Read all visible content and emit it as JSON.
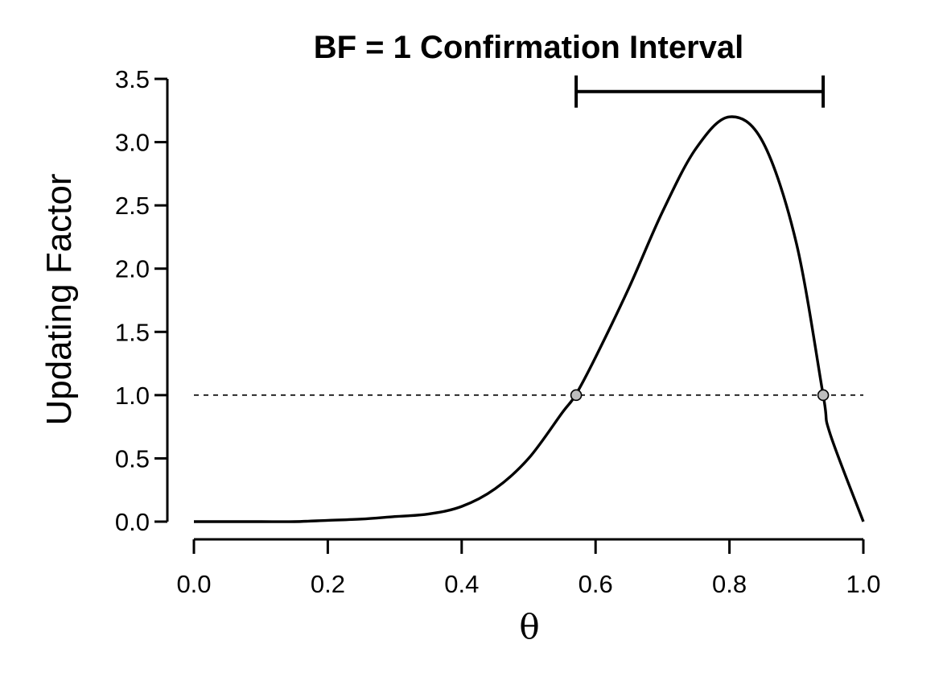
{
  "chart_data": {
    "type": "line",
    "title": "BF = 1 Confirmation Interval",
    "xlabel": "θ",
    "ylabel": "Updating Factor",
    "xlim": [
      0,
      1
    ],
    "ylim": [
      0,
      3.5
    ],
    "x_ticks": [
      "0.0",
      "0.2",
      "0.4",
      "0.6",
      "0.8",
      "1.0"
    ],
    "y_ticks": [
      "0.0",
      "0.5",
      "1.0",
      "1.5",
      "2.0",
      "2.5",
      "3.0",
      "3.5"
    ],
    "series": [
      {
        "x": [
          0.0,
          0.05,
          0.1,
          0.15,
          0.2,
          0.25,
          0.3,
          0.35,
          0.4,
          0.45,
          0.5,
          0.55,
          0.57,
          0.6,
          0.65,
          0.7,
          0.75,
          0.8,
          0.85,
          0.9,
          0.94,
          0.95,
          1.0
        ],
        "y": [
          0.0,
          0.0,
          0.0,
          0.0,
          0.01,
          0.02,
          0.04,
          0.06,
          0.12,
          0.26,
          0.5,
          0.86,
          1.0,
          1.3,
          1.85,
          2.45,
          2.95,
          3.2,
          3.0,
          2.2,
          1.0,
          0.7,
          0.0
        ]
      }
    ],
    "reference_line": {
      "y": 1.0,
      "style": "dashed",
      "x_range": [
        0,
        1
      ]
    },
    "intersection_points": [
      {
        "x": 0.571,
        "y": 1.0
      },
      {
        "x": 0.94,
        "y": 1.0
      }
    ],
    "interval": {
      "lower": 0.571,
      "upper": 0.94,
      "y": 3.4
    },
    "grid": false,
    "legend": false
  }
}
